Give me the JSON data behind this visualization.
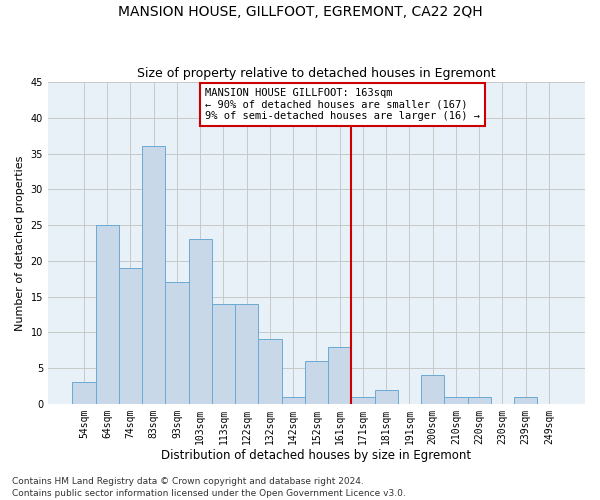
{
  "title": "MANSION HOUSE, GILLFOOT, EGREMONT, CA22 2QH",
  "subtitle": "Size of property relative to detached houses in Egremont",
  "xlabel": "Distribution of detached houses by size in Egremont",
  "ylabel": "Number of detached properties",
  "bar_labels": [
    "54sqm",
    "64sqm",
    "74sqm",
    "83sqm",
    "93sqm",
    "103sqm",
    "113sqm",
    "122sqm",
    "132sqm",
    "142sqm",
    "152sqm",
    "161sqm",
    "171sqm",
    "181sqm",
    "191sqm",
    "200sqm",
    "210sqm",
    "220sqm",
    "230sqm",
    "239sqm",
    "249sqm"
  ],
  "bar_values": [
    3,
    25,
    19,
    36,
    17,
    23,
    14,
    14,
    9,
    1,
    6,
    8,
    1,
    2,
    0,
    4,
    1,
    1,
    0,
    1,
    0
  ],
  "bar_color": "#c8d8e8",
  "bar_edgecolor": "#6aaad4",
  "vline_x": 11.5,
  "vline_color": "#cc0000",
  "annotation_text": "MANSION HOUSE GILLFOOT: 163sqm\n← 90% of detached houses are smaller (167)\n9% of semi-detached houses are larger (16) →",
  "annotation_box_color": "#ffffff",
  "annotation_box_edgecolor": "#cc0000",
  "ylim": [
    0,
    45
  ],
  "yticks": [
    0,
    5,
    10,
    15,
    20,
    25,
    30,
    35,
    40,
    45
  ],
  "grid_color": "#c8c8c8",
  "background_color": "#e8f0f8",
  "footer_line1": "Contains HM Land Registry data © Crown copyright and database right 2024.",
  "footer_line2": "Contains public sector information licensed under the Open Government Licence v3.0.",
  "title_fontsize": 10,
  "subtitle_fontsize": 9,
  "xlabel_fontsize": 8.5,
  "ylabel_fontsize": 8,
  "tick_fontsize": 7,
  "annotation_fontsize": 7.5,
  "footer_fontsize": 6.5
}
